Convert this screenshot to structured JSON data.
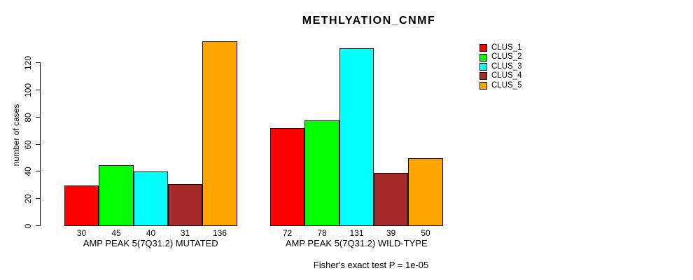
{
  "chart_data": {
    "type": "bar",
    "title": "METHLYATION_CNMF",
    "ylabel": "number of cases",
    "xlabel": "",
    "annotation": "Fisher's exact test P = 1e-05",
    "y_ticks": [
      0,
      20,
      40,
      60,
      80,
      100,
      120
    ],
    "ylim": [
      0,
      136
    ],
    "grid": false,
    "legend_position": "right",
    "series": [
      "CLUS_1",
      "CLUS_2",
      "CLUS_3",
      "CLUS_4",
      "CLUS_5"
    ],
    "colors": [
      "#FF0000",
      "#00FF00",
      "#00FFFF",
      "#A52A2A",
      "#FFA500"
    ],
    "groups": [
      {
        "label": "AMP PEAK 5(7Q31.2) MUTATED",
        "values": [
          30,
          45,
          40,
          31,
          136
        ]
      },
      {
        "label": "AMP PEAK 5(7Q31.2) WILD-TYPE",
        "values": [
          72,
          78,
          131,
          39,
          50
        ]
      }
    ]
  }
}
